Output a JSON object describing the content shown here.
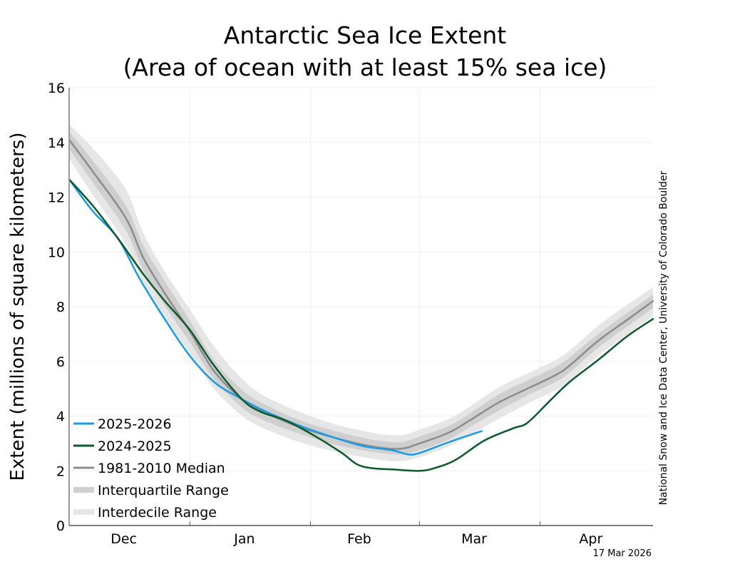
{
  "chart_data": {
    "type": "line",
    "title": "Antarctic Sea Ice Extent",
    "subtitle": "(Area of ocean with at least 15% sea ice)",
    "xlabel": "",
    "ylabel": "Extent (millions of square kilometers)",
    "ylim": [
      0,
      16
    ],
    "yticks": [
      0,
      2,
      4,
      6,
      8,
      10,
      12,
      14,
      16
    ],
    "x_unit": "days since Dec 1",
    "xlim": [
      0,
      150
    ],
    "month_boundaries": [
      0,
      31,
      62,
      90,
      121,
      150
    ],
    "month_labels": [
      "Dec",
      "Jan",
      "Feb",
      "Mar",
      "Apr"
    ],
    "grid": true,
    "legend_position": "bottom-left",
    "credit": "National Snow and Ice Data Center, University of Colorado Boulder",
    "date_stamp": "17 Mar 2026",
    "colors": {
      "current": "#1a9be8",
      "previous": "#0b5a2a",
      "median": "#8c8c8c",
      "interquartile": "#cfcfcf",
      "interdecile": "#e6e6e6"
    },
    "legend": [
      {
        "key": "current",
        "label": "2025-2026"
      },
      {
        "key": "previous",
        "label": "2024-2025"
      },
      {
        "key": "median",
        "label": "1981-2010 Median"
      },
      {
        "key": "interquartile",
        "label": "Interquartile Range"
      },
      {
        "key": "interdecile",
        "label": "Interdecile Range"
      }
    ],
    "series": [
      {
        "name": "1981-2010 Median",
        "key": "median",
        "x": [
          0,
          6,
          14.5,
          19,
          24.5,
          31,
          37.2,
          44.5,
          50,
          59.2,
          68.4,
          77.5,
          84.8,
          90,
          97.6,
          103,
          110.4,
          117.7,
          125,
          128.6,
          135.9,
          143.2,
          150
        ],
        "y": [
          14.1,
          12.95,
          11.25,
          9.8,
          8.5,
          7.1,
          5.65,
          4.6,
          4.15,
          3.6,
          3.2,
          2.9,
          2.8,
          3.0,
          3.4,
          3.85,
          4.5,
          5.0,
          5.5,
          5.85,
          6.75,
          7.5,
          8.2
        ]
      },
      {
        "name": "2025-2026",
        "key": "current",
        "x": [
          0,
          6,
          12.5,
          18,
          24.3,
          31,
          37.2,
          42.7,
          50,
          59.2,
          68.4,
          75.6,
          83,
          87,
          90,
          97.6,
          106
        ],
        "y": [
          12.65,
          11.5,
          10.5,
          9.05,
          7.6,
          6.2,
          5.25,
          4.75,
          4.2,
          3.65,
          3.2,
          2.9,
          2.75,
          2.6,
          2.65,
          3.05,
          3.45
        ]
      },
      {
        "name": "2024-2025",
        "key": "previous",
        "x": [
          0,
          6,
          12.5,
          19,
          24.3,
          31,
          37.2,
          44.5,
          49.3,
          55.5,
          62.8,
          70.1,
          73.8,
          77.5,
          83,
          90,
          93.9,
          99.3,
          106.6,
          114,
          117.7,
          123.1,
          128.6,
          135.9,
          143.2,
          150
        ],
        "y": [
          12.65,
          11.7,
          10.5,
          9.2,
          8.25,
          7.15,
          5.85,
          4.6,
          4.15,
          3.85,
          3.3,
          2.65,
          2.25,
          2.1,
          2.05,
          2.0,
          2.1,
          2.4,
          3.1,
          3.55,
          3.75,
          4.5,
          5.25,
          6.05,
          6.9,
          7.55
        ]
      }
    ],
    "bands": [
      {
        "name": "Interdecile Range",
        "key": "interdecile",
        "x": [
          0,
          6,
          14.5,
          19,
          24.5,
          31,
          37.2,
          44.5,
          50,
          59.2,
          68.4,
          77.5,
          84.8,
          90,
          97.6,
          103,
          110.4,
          117.7,
          125,
          128.6,
          135.9,
          143.2,
          150
        ],
        "lower": [
          13.4,
          12.1,
          10.3,
          8.9,
          7.6,
          6.3,
          5.0,
          4.0,
          3.55,
          3.05,
          2.7,
          2.45,
          2.35,
          2.5,
          2.9,
          3.3,
          3.9,
          4.45,
          4.95,
          5.3,
          6.2,
          6.95,
          7.65
        ],
        "upper": [
          14.65,
          13.8,
          12.3,
          10.7,
          9.3,
          7.9,
          6.55,
          5.35,
          4.75,
          4.15,
          3.7,
          3.4,
          3.3,
          3.5,
          3.9,
          4.35,
          5.05,
          5.55,
          6.05,
          6.4,
          7.3,
          8.05,
          8.7
        ]
      },
      {
        "name": "Interquartile Range",
        "key": "interquartile",
        "x": [
          0,
          6,
          14.5,
          19,
          24.5,
          31,
          37.2,
          44.5,
          50,
          59.2,
          68.4,
          77.5,
          84.8,
          90,
          97.6,
          103,
          110.4,
          117.7,
          125,
          128.6,
          135.9,
          143.2,
          150
        ],
        "lower": [
          13.75,
          12.55,
          10.8,
          9.35,
          8.05,
          6.7,
          5.35,
          4.3,
          3.85,
          3.35,
          2.95,
          2.7,
          2.6,
          2.75,
          3.15,
          3.6,
          4.2,
          4.75,
          5.25,
          5.6,
          6.5,
          7.25,
          7.95
        ],
        "upper": [
          14.4,
          13.35,
          11.7,
          10.25,
          8.95,
          7.5,
          6.05,
          4.95,
          4.45,
          3.85,
          3.45,
          3.15,
          3.05,
          3.25,
          3.65,
          4.1,
          4.8,
          5.3,
          5.8,
          6.15,
          7.0,
          7.75,
          8.45
        ]
      }
    ]
  }
}
